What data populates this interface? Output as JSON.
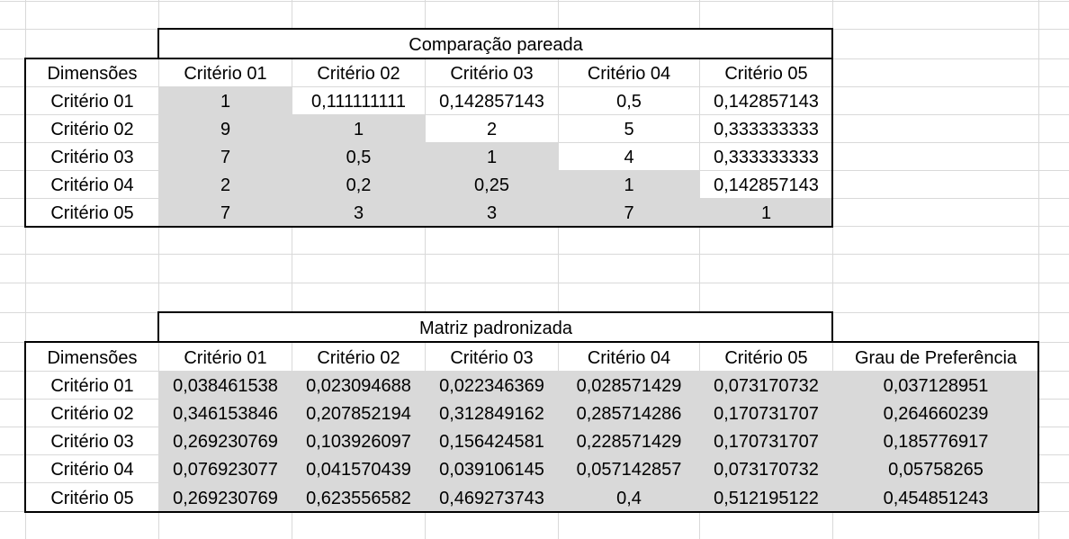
{
  "table1": {
    "title": "Comparação pareada",
    "row_header": "Dimensões",
    "columns": [
      "Critério 01",
      "Critério 02",
      "Critério 03",
      "Critério 04",
      "Critério 05"
    ],
    "rows": [
      {
        "label": "Critério 01",
        "values": [
          "1",
          "0,111111111",
          "0,142857143",
          "0,5",
          "0,142857143"
        ]
      },
      {
        "label": "Critério 02",
        "values": [
          "9",
          "1",
          "2",
          "5",
          "0,333333333"
        ]
      },
      {
        "label": "Critério 03",
        "values": [
          "7",
          "0,5",
          "1",
          "4",
          "0,333333333"
        ]
      },
      {
        "label": "Critério 04",
        "values": [
          "2",
          "0,2",
          "0,25",
          "1",
          "0,142857143"
        ]
      },
      {
        "label": "Critério 05",
        "values": [
          "7",
          "3",
          "3",
          "7",
          "1"
        ]
      }
    ]
  },
  "table2": {
    "title": "Matriz padronizada",
    "row_header": "Dimensões",
    "columns": [
      "Critério 01",
      "Critério 02",
      "Critério 03",
      "Critério 04",
      "Critério 05",
      "Grau de Preferência"
    ],
    "rows": [
      {
        "label": "Critério 01",
        "values": [
          "0,038461538",
          "0,023094688",
          "0,022346369",
          "0,028571429",
          "0,073170732",
          "0,037128951"
        ]
      },
      {
        "label": "Critério 02",
        "values": [
          "0,346153846",
          "0,207852194",
          "0,312849162",
          "0,285714286",
          "0,170731707",
          "0,264660239"
        ]
      },
      {
        "label": "Critério 03",
        "values": [
          "0,269230769",
          "0,103926097",
          "0,156424581",
          "0,228571429",
          "0,170731707",
          "0,185776917"
        ]
      },
      {
        "label": "Critério 04",
        "values": [
          "0,076923077",
          "0,041570439",
          "0,039106145",
          "0,057142857",
          "0,073170732",
          "0,05758265"
        ]
      },
      {
        "label": "Critério 05",
        "values": [
          "0,269230769",
          "0,623556582",
          "0,469273743",
          "0,4",
          "0,512195122",
          "0,454851243"
        ]
      }
    ]
  }
}
